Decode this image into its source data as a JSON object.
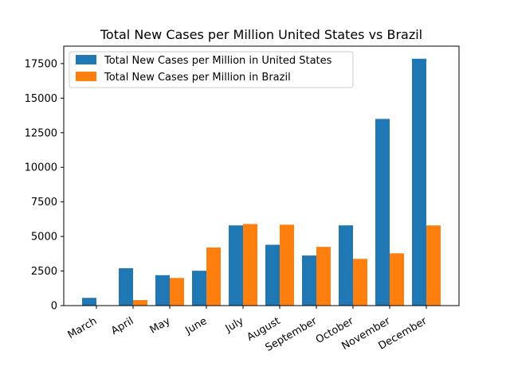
{
  "chart_data": {
    "type": "bar",
    "title": "Total New Cases per Million United States vs Brazil",
    "xlabel": "",
    "ylabel": "",
    "categories": [
      "March",
      "April",
      "May",
      "June",
      "July",
      "August",
      "September",
      "October",
      "November",
      "December"
    ],
    "series": [
      {
        "name": "Total New Cases per Million in United States",
        "color": "#1f77b4",
        "values": [
          560,
          2700,
          2200,
          2520,
          5800,
          4400,
          3620,
          5800,
          13500,
          17850
        ]
      },
      {
        "name": "Total New Cases per Million in Brazil",
        "color": "#ff7f0e",
        "values": [
          0,
          400,
          2000,
          4200,
          5900,
          5850,
          4250,
          3380,
          3780,
          5800
        ]
      }
    ],
    "ylim": [
      0,
      18760
    ],
    "yticks": [
      0,
      2500,
      5000,
      7500,
      10000,
      12500,
      15000,
      17500
    ],
    "ytick_labels": [
      "0",
      "2500",
      "5000",
      "7500",
      "10000",
      "12500",
      "15000",
      "17500"
    ],
    "legend_position": "upper-left",
    "grid": false
  }
}
